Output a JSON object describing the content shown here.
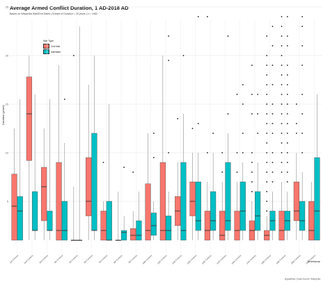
{
  "chart_data": {
    "type": "boxplot",
    "title": "Average Armed Conflict Duration, 1 AD-2018 AD",
    "subtitle": "Based on Wikipedia Start/End Dates | Subset of Duration < 25 years | n = 1983",
    "ylabel": "Duration (years)",
    "xlabel": "Timeframe",
    "caption": "@gdalfhsa | Data Source: Wikipedia",
    "ylim": [
      0,
      25
    ],
    "yticks": [
      5,
      10,
      15,
      20,
      25
    ],
    "grid": true,
    "legend": {
      "title": "War Type",
      "position": "top-left",
      "entries": [
        {
          "name": "Civil War",
          "color": "#F8766D"
        },
        {
          "name": "Interstate",
          "color": "#00BFC4"
        }
      ]
    },
    "categories": [
      "1st Century",
      "2nd Century",
      "3rd Century",
      "4th Century",
      "5th Century",
      "6th Century",
      "7th Century",
      "8th Century",
      "9th Century",
      "10th Century",
      "11th Century",
      "12th Century",
      "13th Century",
      "14th Century",
      "15th Century",
      "16th Century",
      "17th Century",
      "18th Century",
      "19th Century",
      "20th Century",
      "21st Century"
    ],
    "series": [
      {
        "name": "Civil War",
        "color": "#F8766D",
        "boxes": [
          {
            "q1": 1,
            "median": 4.5,
            "q3": 7.8,
            "wlo": 1,
            "whi": 12.5,
            "outliers": []
          },
          {
            "q1": 9.2,
            "median": 14,
            "q3": 17.8,
            "wlo": 1,
            "whi": 20,
            "outliers": []
          },
          {
            "q1": 3,
            "median": 6.5,
            "q3": 8.5,
            "wlo": 1,
            "whi": 12.5,
            "outliers": []
          },
          {
            "q1": 1,
            "median": 2,
            "q3": 9,
            "wlo": 1,
            "whi": 19,
            "outliers": []
          },
          {
            "q1": 1,
            "median": 1,
            "q3": 1,
            "wlo": 1,
            "whi": 6.5,
            "outliers": [
              20
            ]
          },
          {
            "q1": 3.5,
            "median": 5,
            "q3": 9.5,
            "wlo": 1,
            "whi": 17,
            "outliers": []
          },
          {
            "q1": 1,
            "median": 2,
            "q3": 4,
            "wlo": 1,
            "whi": 5,
            "outliers": [
              9
            ]
          },
          {
            "q1": 1,
            "median": 1,
            "q3": 1,
            "wlo": 1,
            "whi": 6,
            "outliers": []
          },
          {
            "q1": 1,
            "median": 1.5,
            "q3": 2.2,
            "wlo": 1,
            "whi": 4,
            "outliers": [
              8
            ]
          },
          {
            "q1": 1,
            "median": 2,
            "q3": 6.8,
            "wlo": 1,
            "whi": 12,
            "outliers": []
          },
          {
            "q1": 1,
            "median": 2,
            "q3": 9,
            "wlo": 1,
            "whi": 20,
            "outliers": []
          },
          {
            "q1": 2.5,
            "median": 4,
            "q3": 5.5,
            "wlo": 1,
            "whi": 9,
            "outliers": [
              13.5
            ]
          },
          {
            "q1": 3.5,
            "median": 5,
            "q3": 7,
            "wlo": 1,
            "whi": 10,
            "outliers": [
              12.5
            ]
          },
          {
            "q1": 1,
            "median": 2,
            "q3": 4,
            "wlo": 1,
            "whi": 7,
            "outliers": [
              10,
              24
            ]
          },
          {
            "q1": 1,
            "median": 1.5,
            "q3": 4,
            "wlo": 1,
            "whi": 7,
            "outliers": [
              8,
              10
            ]
          },
          {
            "q1": 1,
            "median": 2,
            "q3": 4,
            "wlo": 1,
            "whi": 7,
            "outliers": [
              8,
              10,
              16
            ]
          },
          {
            "q1": 1,
            "median": 2,
            "q3": 3,
            "wlo": 1,
            "whi": 5,
            "outliers": [
              6,
              7,
              8,
              9,
              10,
              14,
              16,
              19
            ]
          },
          {
            "q1": 1,
            "median": 1.5,
            "q3": 2,
            "wlo": 1,
            "whi": 3.5,
            "outliers": [
              4,
              5,
              6,
              7,
              8,
              9,
              10,
              11,
              12,
              13,
              14,
              15,
              16,
              17,
              18,
              19,
              20,
              22
            ]
          },
          {
            "q1": 1,
            "median": 2,
            "q3": 4,
            "wlo": 1,
            "whi": 7,
            "outliers": [
              8,
              9,
              10,
              11,
              12,
              13,
              14,
              15,
              16,
              17,
              18,
              19,
              20,
              21,
              22,
              23,
              24
            ]
          },
          {
            "q1": 3,
            "median": 4,
            "q3": 7,
            "wlo": 1,
            "whi": 10,
            "outliers": [
              12,
              13,
              15
            ]
          },
          {
            "q1": 1,
            "median": 2,
            "q3": 5,
            "wlo": 1,
            "whi": 7,
            "outliers": []
          }
        ]
      },
      {
        "name": "Interstate",
        "color": "#00BFC4",
        "boxes": [
          {
            "q1": 1,
            "median": 4,
            "q3": 5.5,
            "wlo": 1,
            "whi": 15.5,
            "outliers": []
          },
          {
            "q1": 2,
            "median": 2,
            "q3": 6,
            "wlo": 1,
            "whi": 16,
            "outliers": []
          },
          {
            "q1": 2,
            "median": 2,
            "q3": 4,
            "wlo": 1,
            "whi": 15.5,
            "outliers": []
          },
          {
            "q1": 1,
            "median": 2,
            "q3": 5,
            "wlo": 1,
            "whi": 11,
            "outliers": [
              15.5
            ]
          },
          {
            "q1": 1,
            "median": 1,
            "q3": 1,
            "wlo": 1,
            "whi": 23,
            "outliers": []
          },
          {
            "q1": 2,
            "median": 2,
            "q3": 12,
            "wlo": 1,
            "whi": 20,
            "outliers": []
          },
          {
            "q1": 1,
            "median": 1,
            "q3": 5,
            "wlo": 1,
            "whi": 15,
            "outliers": []
          },
          {
            "q1": 1,
            "median": 1.8,
            "q3": 2,
            "wlo": 1,
            "whi": 3.5,
            "outliers": [
              8.5
            ]
          },
          {
            "q1": 1,
            "median": 1.5,
            "q3": 3,
            "wlo": 1,
            "whi": 6,
            "outliers": []
          },
          {
            "q1": 1.5,
            "median": 2.5,
            "q3": 3.8,
            "wlo": 1,
            "whi": 5,
            "outliers": [
              9.5,
              12
            ]
          },
          {
            "q1": 1,
            "median": 2,
            "q3": 3.5,
            "wlo": 1,
            "whi": 6,
            "outliers": [
              10,
              19.5,
              22
            ]
          },
          {
            "q1": 1,
            "median": 2,
            "q3": 9,
            "wlo": 1,
            "whi": 14,
            "outliers": [
              20
            ]
          },
          {
            "q1": 2,
            "median": 3,
            "q3": 7,
            "wlo": 1,
            "whi": 10,
            "outliers": [
              13,
              24
            ]
          },
          {
            "q1": 2,
            "median": 3,
            "q3": 6,
            "wlo": 1,
            "whi": 10,
            "outliers": [
              12
            ]
          },
          {
            "q1": 2,
            "median": 3,
            "q3": 9,
            "wlo": 1,
            "whi": 12,
            "outliers": [
              14,
              22
            ]
          },
          {
            "q1": 2,
            "median": 4,
            "q3": 7,
            "wlo": 1,
            "whi": 9,
            "outliers": [
              10,
              12,
              15,
              17
            ]
          },
          {
            "q1": 2,
            "median": 3.5,
            "q3": 6,
            "wlo": 1,
            "whi": 9,
            "outliers": [
              12,
              14,
              16
            ]
          },
          {
            "q1": 2,
            "median": 3,
            "q3": 4,
            "wlo": 1,
            "whi": 6,
            "outliers": [
              7,
              8,
              9,
              10,
              12,
              13,
              14,
              15,
              17,
              19,
              21,
              23
            ]
          },
          {
            "q1": 2,
            "median": 3,
            "q3": 4,
            "wlo": 1,
            "whi": 6,
            "outliers": [
              7,
              8,
              9,
              10,
              11,
              12,
              13,
              14,
              15,
              16,
              17,
              18,
              19,
              21,
              22,
              24
            ]
          },
          {
            "q1": 2,
            "median": 3,
            "q3": 5,
            "wlo": 1,
            "whi": 8,
            "outliers": [
              10,
              12,
              14,
              16,
              19,
              21,
              23,
              24
            ]
          },
          {
            "q1": 1,
            "median": 4,
            "q3": 9.5,
            "wlo": 1,
            "whi": 16,
            "outliers": []
          }
        ]
      }
    ]
  }
}
